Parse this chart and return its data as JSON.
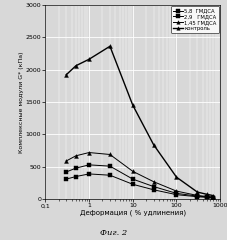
{
  "title": "",
  "xlabel": "Деформация ( % удлинения)",
  "ylabel": "Комплексные модули G* (кПа)",
  "caption": "Фиг. 2",
  "legend_labels": [
    "5,8  ГМДСА",
    "2,9   ГМДСА",
    "1,45 ГМДСА",
    "контроль"
  ],
  "xlim_log": [
    0.1,
    1000
  ],
  "ylim": [
    0,
    3000
  ],
  "yticks": [
    0,
    500,
    1000,
    1500,
    2000,
    2500,
    3000
  ],
  "bg_color": "#d8d8d8",
  "plot_bg": "#d8d8d8",
  "grid_color": "#ffffff",
  "series": {
    "gmds_58": {
      "x": [
        0.3,
        0.5,
        1.0,
        3.0,
        10.0,
        30.0,
        100.0,
        300.0,
        500.0,
        700.0
      ],
      "y": [
        310,
        350,
        390,
        370,
        230,
        145,
        70,
        38,
        28,
        20
      ]
    },
    "gmds_29": {
      "x": [
        0.3,
        0.5,
        1.0,
        3.0,
        10.0,
        30.0,
        100.0,
        300.0,
        500.0,
        700.0
      ],
      "y": [
        420,
        480,
        530,
        510,
        310,
        195,
        90,
        48,
        36,
        26
      ]
    },
    "gmds_145": {
      "x": [
        0.3,
        0.5,
        1.0,
        3.0,
        10.0,
        30.0,
        100.0,
        300.0,
        500.0,
        700.0
      ],
      "y": [
        590,
        670,
        720,
        690,
        430,
        270,
        125,
        58,
        42,
        32
      ]
    },
    "control": {
      "x": [
        0.3,
        0.5,
        1.0,
        3.0,
        10.0,
        30.0,
        100.0,
        300.0,
        500.0,
        700.0
      ],
      "y": [
        1920,
        2060,
        2160,
        2360,
        1450,
        840,
        340,
        110,
        75,
        55
      ]
    }
  }
}
